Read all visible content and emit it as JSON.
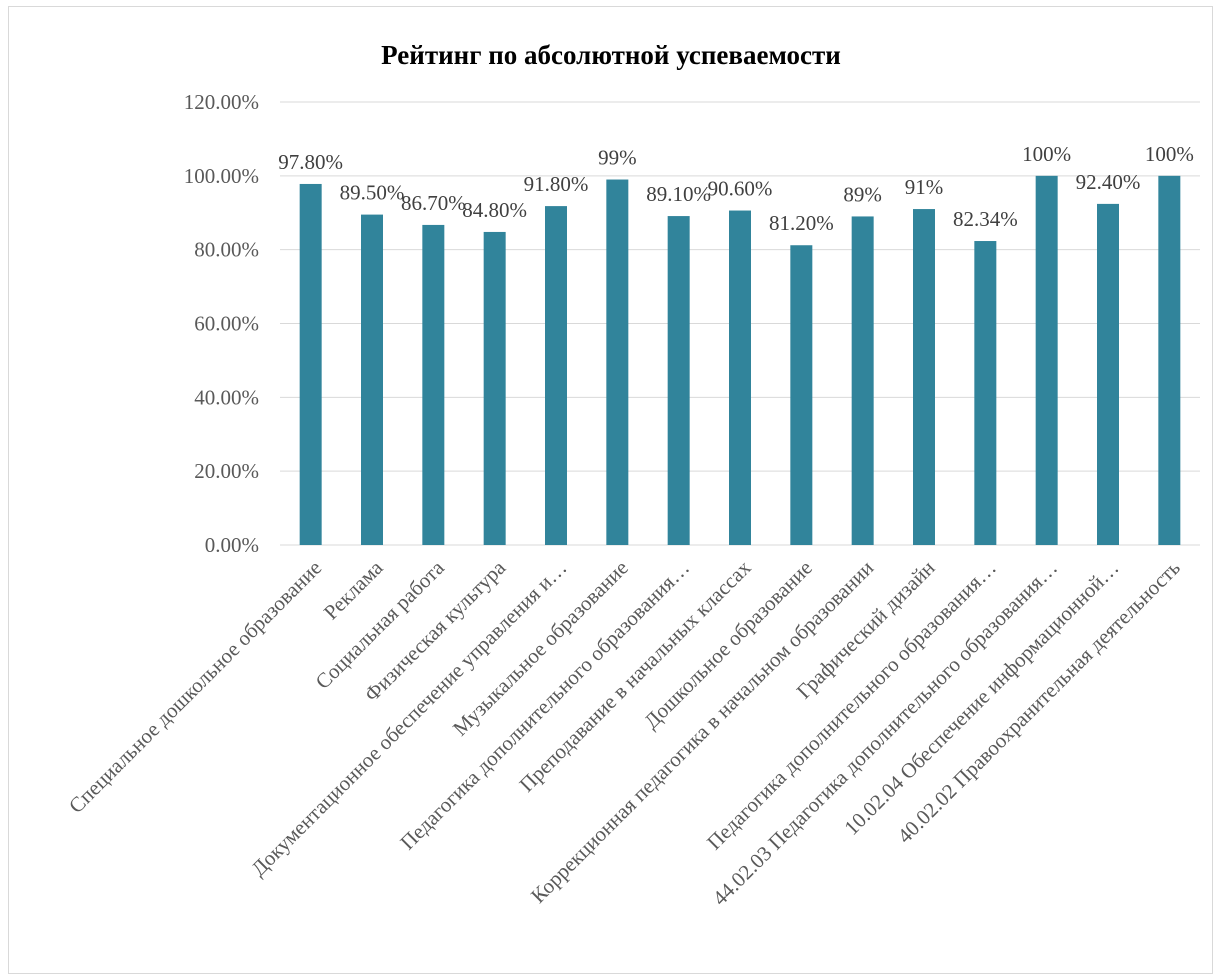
{
  "chart_data": {
    "type": "bar",
    "title": "Рейтинг по абсолютной успеваемости",
    "xlabel": "",
    "ylabel": "",
    "ylim": [
      0,
      1.2
    ],
    "yticks": [
      "0.00%",
      "20.00%",
      "40.00%",
      "60.00%",
      "80.00%",
      "100.00%",
      "120.00%"
    ],
    "grid": true,
    "legend": "none",
    "bar_color": "#31849b",
    "categories": [
      "Специальное дошкольное образование",
      "Реклама",
      "Социальная работа",
      "Физическая культура",
      "Документационное обеспечение управления и…",
      "Музыкальное образование",
      "Педагогика дополнительного образования…",
      "Преподавание в начальных классах",
      "Дошкольное образование",
      "Коррекционная педагогика в начальном образовании",
      "Графический дизайн",
      "Педагогика дополнительного образования…",
      "44.02.03 Педагогика дополнительного образования…",
      "10.02.04 Обеспечение информационной…",
      "40.02.02 Правоохранительная деятельность"
    ],
    "values": [
      0.978,
      0.895,
      0.867,
      0.848,
      0.918,
      0.99,
      0.891,
      0.906,
      0.812,
      0.89,
      0.91,
      0.8234,
      1.0,
      0.924,
      1.0
    ],
    "data_labels": [
      "97.80%",
      "89.50%",
      "86.70%",
      "84.80%",
      "91.80%",
      "99%",
      "89.10%",
      "90.60%",
      "81.20%",
      "89%",
      "91%",
      "82.34%",
      "100%",
      "92.40%",
      "100%"
    ]
  }
}
